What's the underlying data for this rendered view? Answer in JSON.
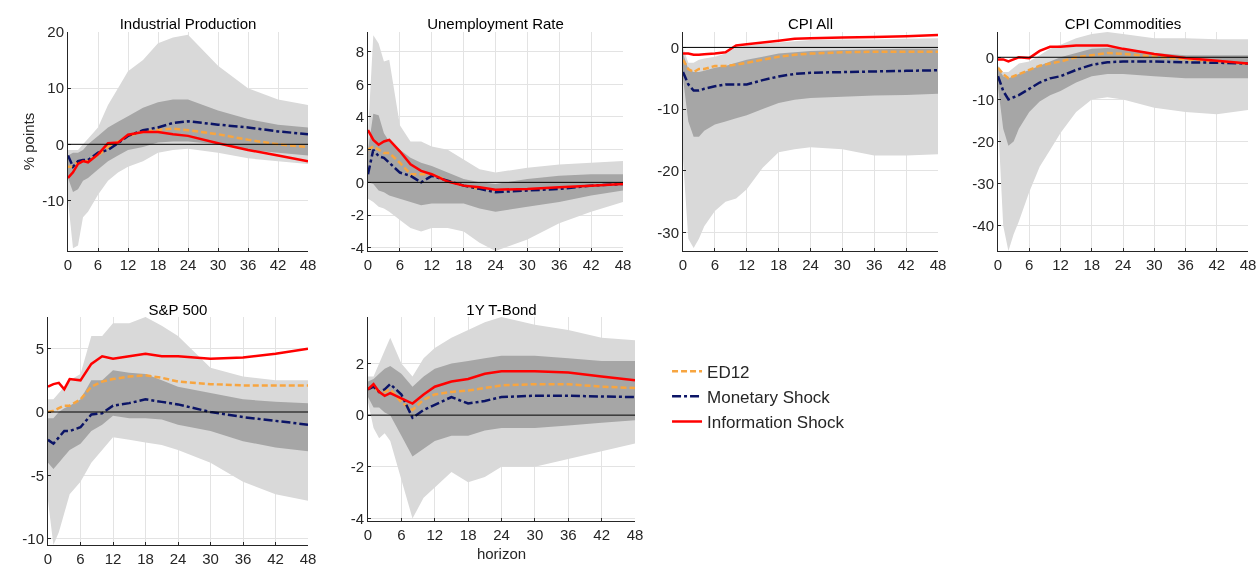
{
  "chart_data": [
    {
      "type": "line",
      "title": "Industrial Production",
      "ylabel": "% points",
      "x": [
        0,
        1,
        2,
        3,
        4,
        6,
        8,
        10,
        12,
        15,
        18,
        21,
        24,
        30,
        36,
        42,
        48
      ],
      "xlim": [
        0,
        48
      ],
      "xticks": [
        0,
        6,
        12,
        18,
        24,
        30,
        36,
        42,
        48
      ],
      "ylim": [
        -19,
        20
      ],
      "yticks": [
        -10,
        0,
        10,
        20
      ],
      "grid": true,
      "ref_lines": [
        {
          "axis": "y",
          "value": 0,
          "color": "#000000"
        }
      ],
      "series": [
        {
          "color": "#d9d9d9",
          "values": [
            null,
            null,
            null,
            null,
            null,
            null,
            null,
            null,
            null,
            null,
            null,
            null,
            null,
            null,
            null,
            null,
            null
          ],
          "lower": [
            -10,
            -18.5,
            -18,
            -13,
            -12,
            -9,
            -6.5,
            -5,
            -4,
            -3,
            -1.5,
            -1,
            -0.8,
            -1.5,
            -2.5,
            -3,
            -3.5
          ],
          "upper": [
            -1,
            -1,
            -1,
            0,
            1,
            3,
            7,
            10,
            13,
            15,
            18,
            19,
            19.5,
            14,
            10,
            8,
            7
          ]
        },
        {
          "color": "#a6a6a6",
          "values": [
            null,
            null,
            null,
            null,
            null,
            null,
            null,
            null,
            null,
            null,
            null,
            null,
            null,
            null,
            null,
            null,
            null
          ],
          "lower": [
            -6,
            -8.5,
            -8,
            -6.5,
            -6,
            -4.5,
            -3,
            -2,
            -1,
            -0.5,
            0.3,
            0.5,
            0.5,
            0,
            -1,
            -1.5,
            -2
          ],
          "upper": [
            -2,
            -1.5,
            -1.5,
            -1,
            0,
            1.5,
            3,
            4,
            5,
            6.5,
            7.5,
            8,
            8,
            6,
            4.5,
            3.5,
            3
          ]
        },
        {
          "color": "#f7a540",
          "line_style": "dashed",
          "values": [
            -4,
            -4,
            -3,
            -3,
            -3,
            -2,
            -0.5,
            0.5,
            1.5,
            2.2,
            2.6,
            2.8,
            2.5,
            1.8,
            0.8,
            0,
            -0.5
          ]
        },
        {
          "color": "#0b1466",
          "line_style": "dashdot",
          "values": [
            -2,
            -4,
            -3,
            -2.8,
            -2.8,
            -1.5,
            -1,
            0.2,
            1.5,
            2.5,
            3,
            3.8,
            4.1,
            3.5,
            3,
            2.3,
            1.8
          ]
        },
        {
          "color": "#ff0000",
          "line_style": "solid",
          "values": [
            -6,
            -5,
            -3.5,
            -3,
            -3.2,
            -1.8,
            0.2,
            0.3,
            1.7,
            2.2,
            2.2,
            1.8,
            1.5,
            0.2,
            -1,
            -2,
            -3
          ]
        }
      ]
    },
    {
      "type": "line",
      "title": "Unemployment Rate",
      "x": [
        0,
        1,
        2,
        3,
        4,
        6,
        8,
        10,
        12,
        15,
        18,
        21,
        24,
        30,
        36,
        42,
        48
      ],
      "xlim": [
        0,
        48
      ],
      "xticks": [
        0,
        6,
        12,
        18,
        24,
        30,
        36,
        42,
        48
      ],
      "ylim": [
        -4.2,
        9.2
      ],
      "yticks": [
        -4,
        -2,
        0,
        2,
        4,
        6,
        8
      ],
      "grid": true,
      "ref_lines": [
        {
          "axis": "y",
          "value": 0,
          "color": "#000000"
        }
      ],
      "series": [
        {
          "color": "#d9d9d9",
          "values": [
            null,
            null,
            null,
            null,
            null,
            null,
            null,
            null,
            null,
            null,
            null,
            null,
            null,
            null,
            null,
            null,
            null
          ],
          "lower": [
            -1,
            -1.2,
            -1.5,
            -1.6,
            -1.8,
            -2.3,
            -2.8,
            -3,
            -2.8,
            -2.8,
            -3,
            -3.7,
            -4.2,
            -3.5,
            -2.5,
            -1.8,
            -1.2
          ],
          "upper": [
            3,
            9,
            8.5,
            7.4,
            7.5,
            3.5,
            2.5,
            2.5,
            2.2,
            2,
            1.4,
            0.8,
            0.6,
            0.9,
            1.1,
            1.2,
            1.3
          ]
        },
        {
          "color": "#a6a6a6",
          "values": [
            null,
            null,
            null,
            null,
            null,
            null,
            null,
            null,
            null,
            null,
            null,
            null,
            null,
            null,
            null,
            null,
            null
          ],
          "lower": [
            0,
            -0.1,
            -0.5,
            -0.6,
            -0.8,
            -1,
            -1.2,
            -1.4,
            -1.3,
            -1.3,
            -1.3,
            -1.6,
            -1.8,
            -1.5,
            -1.2,
            -0.8,
            -0.5
          ],
          "upper": [
            2,
            4.2,
            4.1,
            3,
            2.5,
            2,
            1.5,
            1.2,
            1,
            0.6,
            0.2,
            0,
            -0.1,
            0.2,
            0.4,
            0.5,
            0.5
          ]
        },
        {
          "color": "#f7a540",
          "line_style": "dashed",
          "values": [
            2,
            2.2,
            2,
            1.8,
            1.8,
            1.2,
            0.5,
            0.5,
            0.5,
            0.1,
            -0.2,
            -0.4,
            null,
            null,
            null,
            null,
            null
          ]
        },
        {
          "color": "#0b1466",
          "line_style": "dashdot",
          "values": [
            0.5,
            2,
            1.6,
            1.5,
            1.2,
            0.6,
            0.4,
            0,
            0.4,
            0.1,
            -0.2,
            -0.4,
            -0.6,
            -0.5,
            -0.4,
            -0.2,
            -0.1
          ]
        },
        {
          "color": "#ff0000",
          "line_style": "solid",
          "values": [
            3.2,
            2.6,
            2.3,
            2.5,
            2.6,
            1.9,
            1.1,
            0.7,
            0.5,
            0.05,
            -0.2,
            -0.3,
            -0.45,
            -0.4,
            -0.3,
            -0.2,
            -0.1
          ]
        }
      ]
    },
    {
      "type": "line",
      "title": "CPI All",
      "x": [
        0,
        1,
        2,
        3,
        4,
        6,
        8,
        10,
        12,
        15,
        18,
        21,
        24,
        30,
        36,
        42,
        48
      ],
      "xlim": [
        0,
        48
      ],
      "xticks": [
        0,
        6,
        12,
        18,
        24,
        30,
        36,
        42,
        48
      ],
      "ylim": [
        -33,
        2.5
      ],
      "yticks": [
        -30,
        -20,
        -10,
        0
      ],
      "grid": true,
      "ref_lines": [
        {
          "axis": "y",
          "value": 0,
          "color": "#000000"
        }
      ],
      "series": [
        {
          "color": "#d9d9d9",
          "values": [
            null,
            null,
            null,
            null,
            null,
            null,
            null,
            null,
            null,
            null,
            null,
            null,
            null,
            null,
            null,
            null,
            null
          ],
          "lower": [
            -18,
            -31,
            -32.5,
            -31,
            -29,
            -26.5,
            -25,
            -24.5,
            -23,
            -19.5,
            -17,
            -16.5,
            -16.2,
            -16.5,
            -17.5,
            -17.5,
            -17.3
          ],
          "upper": [
            0,
            -2.5,
            -2.5,
            -2,
            -1.8,
            -1.5,
            -1,
            0,
            0.3,
            0.6,
            0.8,
            1,
            1.2,
            1.3,
            1.3,
            1.4,
            1.5
          ]
        },
        {
          "color": "#a6a6a6",
          "values": [
            null,
            null,
            null,
            null,
            null,
            null,
            null,
            null,
            null,
            null,
            null,
            null,
            null,
            null,
            null,
            null,
            null
          ],
          "lower": [
            -5,
            -12,
            -14.5,
            -14.5,
            -13.5,
            -12.5,
            -12,
            -11.5,
            -11,
            -10,
            -9,
            -8.5,
            -8.2,
            -8,
            -7.8,
            -7.7,
            -7.5
          ],
          "upper": [
            -1,
            -3.5,
            -4,
            -4,
            -3.8,
            -3.3,
            -3,
            -2.5,
            -2,
            -1.5,
            -1,
            -0.8,
            -0.6,
            -0.4,
            -0.3,
            -0.2,
            -0.2
          ]
        },
        {
          "color": "#f7a540",
          "line_style": "dashed",
          "values": [
            -2,
            -3.5,
            -4,
            -3.5,
            -3.5,
            -3,
            -3,
            -2.8,
            -2.5,
            -2,
            -1.5,
            -1.2,
            -1,
            -0.8,
            -0.7,
            -0.7,
            -0.7
          ]
        },
        {
          "color": "#0b1466",
          "line_style": "dashdot",
          "values": [
            -4,
            -6,
            -7,
            -7,
            -6.7,
            -6.3,
            -6,
            -6,
            -6,
            -5.3,
            -4.7,
            -4.3,
            -4.1,
            -4,
            -3.9,
            -3.8,
            -3.7
          ]
        },
        {
          "color": "#ff0000",
          "line_style": "solid",
          "values": [
            -1,
            -1,
            -1.2,
            -1.2,
            -1.1,
            -1,
            -0.8,
            0.3,
            0.5,
            0.8,
            1.1,
            1.4,
            1.5,
            1.6,
            1.7,
            1.8,
            2
          ]
        }
      ]
    },
    {
      "type": "line",
      "title": "CPI Commodities",
      "x": [
        0,
        1,
        2,
        3,
        4,
        6,
        8,
        10,
        12,
        15,
        18,
        21,
        24,
        30,
        36,
        42,
        48
      ],
      "xlim": [
        0,
        48
      ],
      "xticks": [
        0,
        6,
        12,
        18,
        24,
        30,
        36,
        42,
        48
      ],
      "ylim": [
        -46,
        6
      ],
      "yticks": [
        -40,
        -30,
        -20,
        -10,
        0
      ],
      "grid": true,
      "ref_lines": [
        {
          "axis": "y",
          "value": 0,
          "color": "#000000"
        }
      ],
      "series": [
        {
          "color": "#d9d9d9",
          "values": [
            null,
            null,
            null,
            null,
            null,
            null,
            null,
            null,
            null,
            null,
            null,
            null,
            null,
            null,
            null,
            null,
            null
          ],
          "lower": [
            -15,
            -40,
            -46,
            -42,
            -39,
            -32,
            -26,
            -22,
            -18,
            -13,
            -10,
            -9.5,
            -10,
            -12,
            -13,
            -13.5,
            -12.5
          ],
          "upper": [
            -2,
            -3.5,
            -3.5,
            -2.5,
            -1.5,
            -1,
            0.5,
            2,
            3,
            4.5,
            5.5,
            6,
            5.5,
            4.5,
            4.5,
            4.3,
            4.3
          ]
        },
        {
          "color": "#a6a6a6",
          "values": [
            null,
            null,
            null,
            null,
            null,
            null,
            null,
            null,
            null,
            null,
            null,
            null,
            null,
            null,
            null,
            null,
            null
          ],
          "lower": [
            -7,
            -17,
            -21,
            -20,
            -17,
            -13,
            -10.5,
            -9,
            -8,
            -6,
            -4.5,
            -4,
            -4,
            -4.5,
            -5,
            -5,
            -5
          ],
          "upper": [
            -2.5,
            -4.5,
            -5,
            -4.5,
            -4,
            -3,
            -2,
            -1,
            0,
            1,
            2,
            2.2,
            2,
            1,
            0.5,
            0.5,
            0.5
          ]
        },
        {
          "color": "#f7a540",
          "line_style": "dashed",
          "values": [
            -2.5,
            -4,
            -5,
            -4.5,
            -4,
            -3,
            -2,
            -1.5,
            -1,
            0,
            0.5,
            1,
            0.8,
            0.2,
            -0.5,
            -1,
            -1.5
          ]
        },
        {
          "color": "#0b1466",
          "line_style": "dashdot",
          "values": [
            -4.5,
            -8,
            -10,
            -9.5,
            -9,
            -7.5,
            -6,
            -5,
            -4.5,
            -3,
            -1.8,
            -1.2,
            -1,
            -1,
            -1.2,
            -1.3,
            -1.5
          ]
        },
        {
          "color": "#ff0000",
          "line_style": "solid",
          "values": [
            -0.5,
            -0.5,
            -1,
            -0.5,
            0,
            -0.2,
            1.5,
            2.5,
            2.5,
            2.8,
            2.8,
            2.8,
            2,
            0.8,
            -0.2,
            -0.8,
            -1.5
          ]
        }
      ]
    },
    {
      "type": "line",
      "title": "S&P 500",
      "x": [
        0,
        1,
        2,
        3,
        4,
        6,
        8,
        10,
        12,
        15,
        18,
        21,
        24,
        30,
        36,
        42,
        48
      ],
      "xlim": [
        0,
        48
      ],
      "xticks": [
        0,
        6,
        12,
        18,
        24,
        30,
        36,
        42,
        48
      ],
      "ylim": [
        -10.5,
        7.5
      ],
      "yticks": [
        -10,
        -5,
        0,
        5
      ],
      "grid": true,
      "ref_lines": [
        {
          "axis": "y",
          "value": 0,
          "color": "#000000"
        }
      ],
      "series": [
        {
          "color": "#d9d9d9",
          "values": [
            null,
            null,
            null,
            null,
            null,
            null,
            null,
            null,
            null,
            null,
            null,
            null,
            null,
            null,
            null,
            null,
            null
          ],
          "lower": [
            -7,
            -10.5,
            -9.5,
            -8,
            -6.5,
            -5.5,
            -4,
            -3,
            -2,
            -2.2,
            -2.4,
            -2.6,
            -3,
            -4,
            -5.5,
            -6.5,
            -7
          ],
          "upper": [
            1,
            1,
            1.5,
            2,
            2.5,
            3,
            6,
            6,
            7,
            7,
            7.5,
            6.8,
            6,
            3.5,
            2.8,
            2.5,
            2.5
          ]
        },
        {
          "color": "#a6a6a6",
          "values": [
            null,
            null,
            null,
            null,
            null,
            null,
            null,
            null,
            null,
            null,
            null,
            null,
            null,
            null,
            null,
            null,
            null
          ],
          "lower": [
            -4,
            -4.5,
            -4,
            -3.5,
            -3,
            -2.5,
            -1.5,
            -1,
            -0.3,
            -0.5,
            -0.5,
            -0.6,
            -1,
            -1.5,
            -2.3,
            -2.8,
            -3.1
          ],
          "upper": [
            -0.5,
            -0.5,
            0,
            0.3,
            0.5,
            1,
            2.5,
            2.5,
            3.3,
            3.1,
            3,
            2.5,
            2,
            1.5,
            1,
            0.8,
            0.7
          ]
        },
        {
          "color": "#f7a540",
          "line_style": "dashed",
          "values": [
            0,
            0.1,
            0.3,
            0.5,
            0.5,
            1,
            2,
            2.4,
            2.6,
            2.8,
            2.9,
            2.7,
            2.4,
            2.2,
            2.1,
            2.1,
            2.1
          ]
        },
        {
          "color": "#0b1466",
          "line_style": "dashdot",
          "values": [
            -2.2,
            -2.5,
            -2,
            -1.5,
            -1.5,
            -1.2,
            -0.2,
            -0.1,
            0.5,
            0.7,
            1,
            0.8,
            0.6,
            0,
            -0.4,
            -0.7,
            -1
          ]
        },
        {
          "color": "#ff0000",
          "line_style": "solid",
          "values": [
            2,
            2.2,
            2.3,
            1.8,
            2.6,
            2.5,
            3.8,
            4.4,
            4.2,
            4.4,
            4.6,
            4.4,
            4.4,
            4.2,
            4.3,
            4.6,
            5
          ]
        }
      ]
    },
    {
      "type": "line",
      "title": "1Y T-Bond",
      "xlabel": "horizon",
      "x": [
        0,
        1,
        2,
        3,
        4,
        6,
        8,
        10,
        12,
        15,
        18,
        21,
        24,
        30,
        36,
        42,
        48
      ],
      "xlim": [
        0,
        48
      ],
      "xticks": [
        0,
        6,
        12,
        18,
        24,
        30,
        36,
        42,
        48
      ],
      "ylim": [
        -4.1,
        3.8
      ],
      "yticks": [
        -4,
        -2,
        0,
        2
      ],
      "grid": true,
      "legend": "right",
      "ref_lines": [
        {
          "axis": "y",
          "value": 0,
          "color": "#000000"
        }
      ],
      "series": [
        {
          "color": "#d9d9d9",
          "values": [
            null,
            null,
            null,
            null,
            null,
            null,
            null,
            null,
            null,
            null,
            null,
            null,
            null,
            null,
            null,
            null,
            null
          ],
          "lower": [
            0.5,
            -0.5,
            -0.9,
            -0.7,
            -1,
            -2.5,
            -4,
            -3.2,
            -2.8,
            -2.2,
            -2.6,
            -2.4,
            -2,
            -2,
            -1.7,
            -1.4,
            -1.1
          ],
          "upper": [
            1.5,
            1.5,
            2,
            2.5,
            3,
            2,
            1.5,
            2.2,
            2.6,
            3,
            3.3,
            3.6,
            3.8,
            3.5,
            3.3,
            3,
            2.9
          ]
        },
        {
          "color": "#a6a6a6",
          "values": [
            null,
            null,
            null,
            null,
            null,
            null,
            null,
            null,
            null,
            null,
            null,
            null,
            null,
            null,
            null,
            null,
            null
          ],
          "lower": [
            0.7,
            0.3,
            0.3,
            0.1,
            0,
            -0.8,
            -1.6,
            -1.3,
            -1,
            -0.8,
            -0.8,
            -0.6,
            -0.5,
            -0.5,
            -0.4,
            -0.3,
            -0.2
          ],
          "upper": [
            1.3,
            1.4,
            1.6,
            1.8,
            1.9,
            1.6,
            1.1,
            1.5,
            1.8,
            2,
            2.1,
            2.2,
            2.3,
            2.3,
            2.2,
            2.1,
            2.1
          ]
        },
        {
          "name": "ED12",
          "color": "#f7a540",
          "line_style": "dashed",
          "values": [
            1,
            1.1,
            0.9,
            0.9,
            1,
            0.5,
            0.2,
            0.6,
            0.8,
            0.9,
            0.95,
            1.05,
            1.15,
            1.2,
            1.2,
            1.1,
            1.05
          ]
        },
        {
          "name": "Monetary Shock",
          "color": "#0b1466",
          "line_style": "dashdot",
          "values": [
            1,
            1.1,
            0.9,
            1,
            1.2,
            0.8,
            -0.1,
            0.2,
            0.4,
            0.7,
            0.45,
            0.55,
            0.7,
            0.75,
            0.75,
            0.72,
            0.7
          ]
        },
        {
          "name": "Information Shock",
          "color": "#ff0000",
          "line_style": "solid",
          "values": [
            1,
            1.2,
            0.9,
            0.75,
            0.85,
            0.65,
            0.45,
            0.8,
            1.1,
            1.3,
            1.4,
            1.6,
            1.7,
            1.7,
            1.65,
            1.5,
            1.35
          ]
        }
      ]
    }
  ]
}
